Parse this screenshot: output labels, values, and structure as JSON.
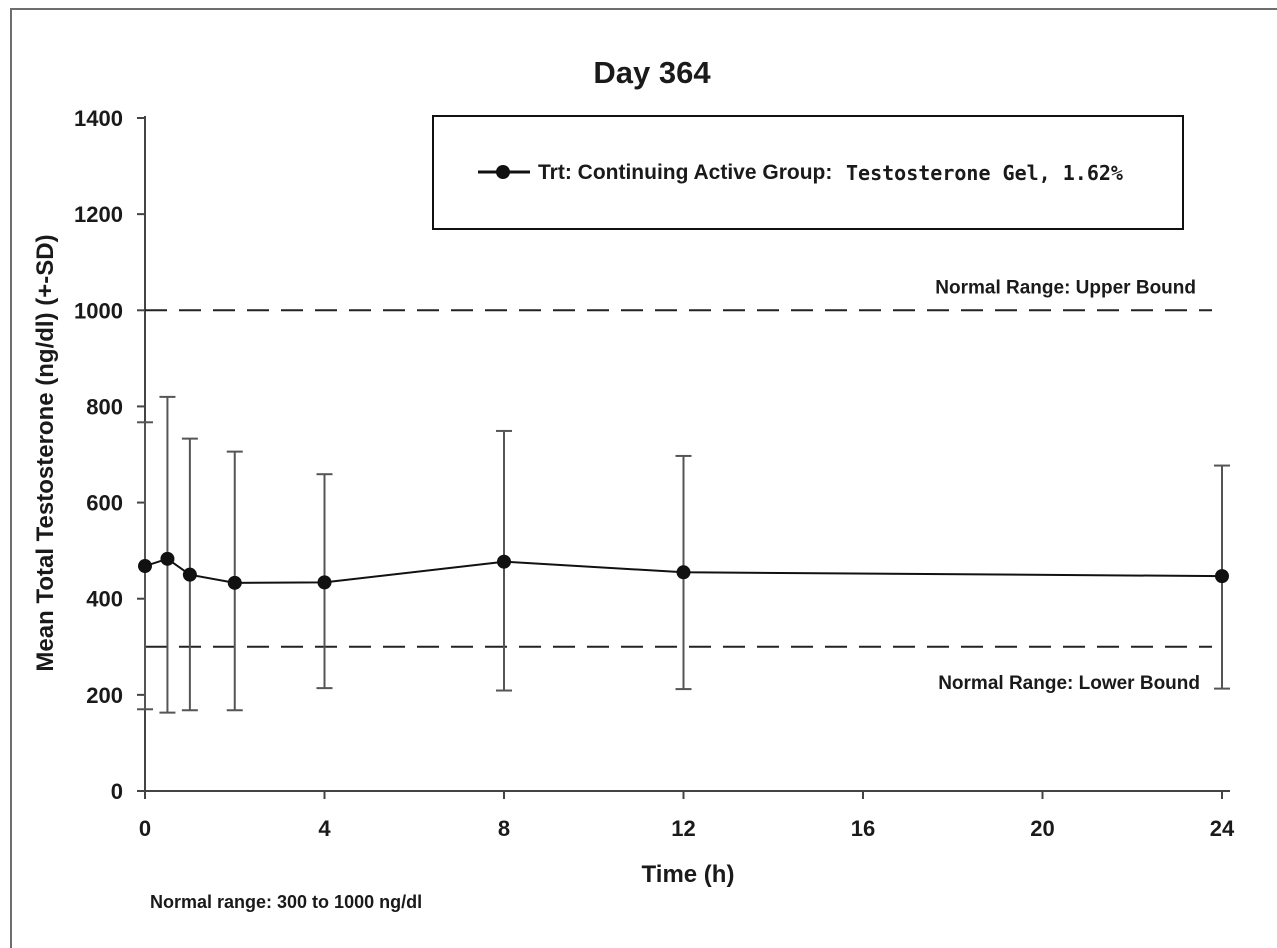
{
  "chart_data": {
    "type": "line",
    "title": "Day 364",
    "xlabel": "Time (h)",
    "ylabel": "Mean Total Testosterone (ng/dl) (+-SD)",
    "xlim": [
      0,
      24
    ],
    "ylim": [
      0,
      1400
    ],
    "x_ticks": [
      0,
      4,
      8,
      12,
      16,
      20,
      24
    ],
    "y_ticks": [
      0,
      200,
      400,
      600,
      800,
      1000,
      1200,
      1400
    ],
    "grid": false,
    "legend_position": "top-right",
    "legend": {
      "label": "Trt: Continuing Active Group:",
      "label_suffix": "Testosterone Gel, 1.62%"
    },
    "series": [
      {
        "name": "Trt: Continuing Active Group: Testosterone Gel, 1.62%",
        "color": "#111111",
        "x": [
          0,
          0.5,
          1,
          2,
          4,
          8,
          12,
          24
        ],
        "y": [
          468,
          483,
          450,
          433,
          434,
          477,
          455,
          447
        ],
        "error_upper": [
          767,
          820,
          733,
          706,
          659,
          749,
          697,
          677
        ],
        "error_lower": [
          170,
          163,
          168,
          168,
          214,
          209,
          212,
          213
        ]
      }
    ],
    "reference_lines": [
      {
        "value": 1000,
        "label": "Normal Range: Upper Bound"
      },
      {
        "value": 300,
        "label": "Normal Range: Lower Bound"
      }
    ],
    "footnote": "Normal range: 300 to 1000 ng/dl"
  }
}
